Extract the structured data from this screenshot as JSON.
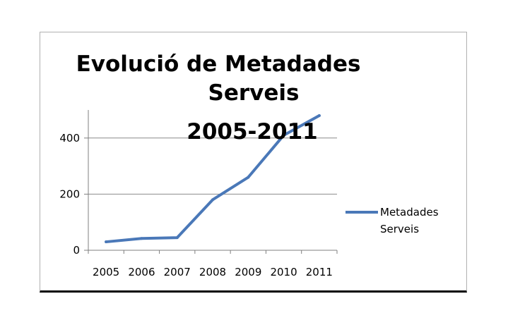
{
  "chart_data": {
    "type": "line",
    "title_lines": [
      "Evolució de Metadades",
      "Serveis",
      "2005-2011"
    ],
    "categories": [
      "2005",
      "2006",
      "2007",
      "2008",
      "2009",
      "2010",
      "2011"
    ],
    "series": [
      {
        "name": "Metadades Serveis",
        "legend_lines": [
          "Metadades",
          "Serveis"
        ],
        "color": "#4a78b8",
        "values": [
          30,
          42,
          45,
          180,
          260,
          410,
          480
        ]
      }
    ],
    "ylim": [
      0,
      500
    ],
    "yticks": [
      0,
      200,
      400
    ],
    "grid": true,
    "legend": "right"
  }
}
